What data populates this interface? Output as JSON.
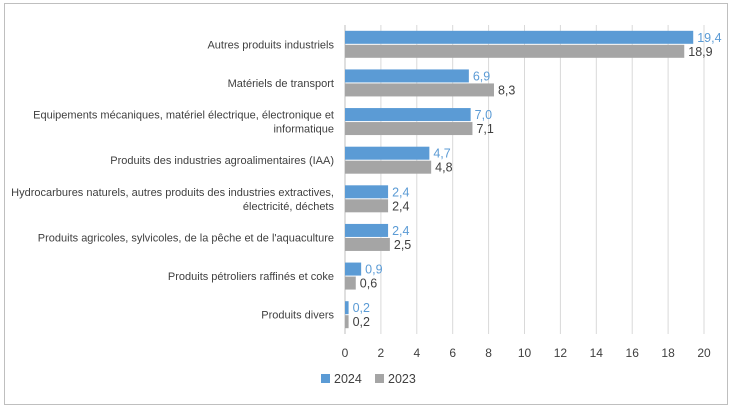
{
  "chart_data": {
    "type": "bar",
    "orientation": "horizontal",
    "title": "",
    "xlabel": "",
    "ylabel": "",
    "xlim": [
      0,
      20
    ],
    "xticks": [
      0,
      2,
      4,
      6,
      8,
      10,
      12,
      14,
      16,
      18,
      20
    ],
    "xtick_labels": [
      "0",
      "2",
      "4",
      "6",
      "8",
      "10",
      "12",
      "14",
      "16",
      "18",
      "20"
    ],
    "grid": "vertical",
    "legend_position": "bottom",
    "categories": [
      [
        "Autres produits industriels"
      ],
      [
        "Matériels de transport"
      ],
      [
        "Equipements mécaniques, matériel électrique, électronique et",
        "informatique"
      ],
      [
        "Produits des industries agroalimentaires (IAA)"
      ],
      [
        "Hydrocarbures naturels, autres produits des industries extractives,",
        "électricité, déchets"
      ],
      [
        "Produits agricoles, sylvicoles, de la pêche et de l'aquaculture"
      ],
      [
        "Produits pétroliers raffinés et coke"
      ],
      [
        "Produits divers"
      ]
    ],
    "series": [
      {
        "name": "2024",
        "color": "#5b9bd5",
        "values": [
          19.4,
          6.9,
          7.0,
          4.7,
          2.4,
          2.4,
          0.9,
          0.2
        ],
        "labels": [
          "19,4",
          "6,9",
          "7,0",
          "4,7",
          "2,4",
          "2,4",
          "0,9",
          "0,2"
        ]
      },
      {
        "name": "2023",
        "color": "#a5a5a5",
        "values": [
          18.9,
          8.3,
          7.1,
          4.8,
          2.4,
          2.5,
          0.6,
          0.2
        ],
        "labels": [
          "18,9",
          "8,3",
          "7,1",
          "4,8",
          "2,4",
          "2,5",
          "0,6",
          "0,2"
        ]
      }
    ]
  }
}
